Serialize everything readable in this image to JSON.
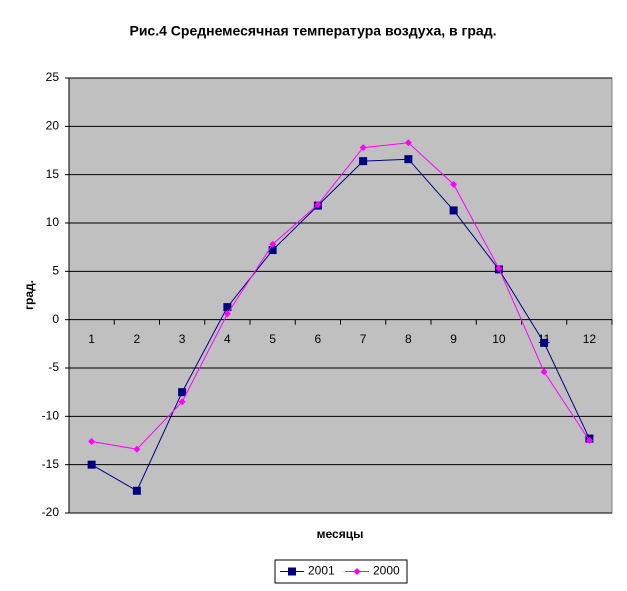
{
  "chart_data": {
    "type": "line",
    "title": "Рис.4 Среднемесячная температура воздуха, в град.",
    "x_label": "месяцы",
    "y_label": "град.",
    "categories": [
      "1",
      "2",
      "3",
      "4",
      "5",
      "6",
      "7",
      "8",
      "9",
      "10",
      "11",
      "12"
    ],
    "series": [
      {
        "name": "2001",
        "color": "#000080",
        "marker": "square",
        "values": [
          -15,
          -17.7,
          -7.5,
          1.3,
          7.2,
          11.8,
          16.4,
          16.6,
          11.3,
          5.2,
          -2.4,
          -12.3
        ]
      },
      {
        "name": "2000",
        "color": "#ff00ff",
        "marker": "diamond",
        "values": [
          -12.6,
          -13.4,
          -8.5,
          0.6,
          7.8,
          11.9,
          17.8,
          18.3,
          14,
          5.3,
          -5.4,
          -12.5
        ]
      }
    ],
    "ylim": [
      -20,
      25
    ],
    "yticks": [
      -20,
      -15,
      -10,
      -5,
      0,
      5,
      10,
      15,
      20,
      25
    ],
    "grid": true,
    "legend": "bottom"
  }
}
